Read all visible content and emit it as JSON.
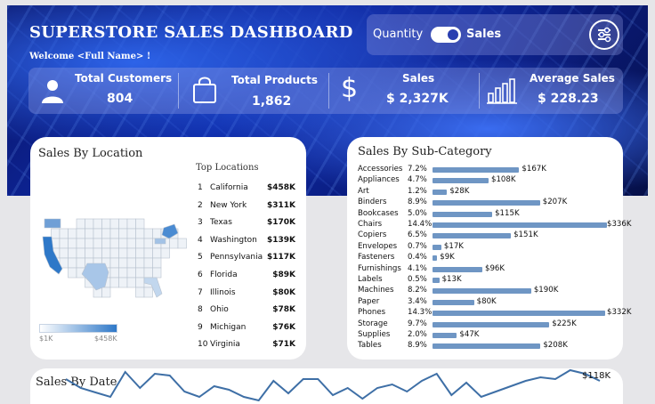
{
  "header": {
    "title": "SUPERSTORE SALES DASHBOARD",
    "welcome": "Welcome <Full Name> !"
  },
  "toggle": {
    "left_label": "Quantity",
    "right_label": "Sales",
    "state": "Sales"
  },
  "kpis": [
    {
      "label": "Total Customers",
      "value": "804",
      "icon": "person-icon"
    },
    {
      "label": "Total Products",
      "value": "1,862",
      "icon": "shopping-bag-icon"
    },
    {
      "label": "Sales",
      "value": "$ 2,327K",
      "icon": "dollar-icon"
    },
    {
      "label": "Average Sales",
      "value": "$ 228.23",
      "icon": "bar-chart-icon"
    }
  ],
  "location": {
    "title": "Sales By Location",
    "list_title": "Top Locations",
    "legend_min": "$1K",
    "legend_max": "$458K",
    "top": [
      {
        "rank": "1",
        "name": "California",
        "value": "$458K"
      },
      {
        "rank": "2",
        "name": "New York",
        "value": "$311K"
      },
      {
        "rank": "3",
        "name": "Texas",
        "value": "$170K"
      },
      {
        "rank": "4",
        "name": "Washington",
        "value": "$139K"
      },
      {
        "rank": "5",
        "name": "Pennsylvania",
        "value": "$117K"
      },
      {
        "rank": "6",
        "name": "Florida",
        "value": "$89K"
      },
      {
        "rank": "7",
        "name": "Illinois",
        "value": "$80K"
      },
      {
        "rank": "8",
        "name": "Ohio",
        "value": "$78K"
      },
      {
        "rank": "9",
        "name": "Michigan",
        "value": "$76K"
      },
      {
        "rank": "10",
        "name": "Virginia",
        "value": "$71K"
      }
    ],
    "colors": {
      "low": "#ffffff",
      "high": "#2e78c8",
      "border": "#b8c2cf"
    }
  },
  "subcategory": {
    "title": "Sales By Sub-Category",
    "bar_color": "#6f96c4",
    "rows": [
      {
        "name": "Accessories",
        "pct": "7.2%",
        "value": 167,
        "label": "$167K"
      },
      {
        "name": "Appliances",
        "pct": "4.7%",
        "value": 108,
        "label": "$108K"
      },
      {
        "name": "Art",
        "pct": "1.2%",
        "value": 28,
        "label": "$28K"
      },
      {
        "name": "Binders",
        "pct": "8.9%",
        "value": 207,
        "label": "$207K"
      },
      {
        "name": "Bookcases",
        "pct": "5.0%",
        "value": 115,
        "label": "$115K"
      },
      {
        "name": "Chairs",
        "pct": "14.4%",
        "value": 336,
        "label": "$336K"
      },
      {
        "name": "Copiers",
        "pct": "6.5%",
        "value": 151,
        "label": "$151K"
      },
      {
        "name": "Envelopes",
        "pct": "0.7%",
        "value": 17,
        "label": "$17K"
      },
      {
        "name": "Fasteners",
        "pct": "0.4%",
        "value": 9,
        "label": "$9K"
      },
      {
        "name": "Furnishings",
        "pct": "4.1%",
        "value": 96,
        "label": "$96K"
      },
      {
        "name": "Labels",
        "pct": "0.5%",
        "value": 13,
        "label": "$13K"
      },
      {
        "name": "Machines",
        "pct": "8.2%",
        "value": 190,
        "label": "$190K"
      },
      {
        "name": "Paper",
        "pct": "3.4%",
        "value": 80,
        "label": "$80K"
      },
      {
        "name": "Phones",
        "pct": "14.3%",
        "value": 332,
        "label": "$332K"
      },
      {
        "name": "Storage",
        "pct": "9.7%",
        "value": 225,
        "label": "$225K"
      },
      {
        "name": "Supplies",
        "pct": "2.0%",
        "value": 47,
        "label": "$47K"
      },
      {
        "name": "Tables",
        "pct": "8.9%",
        "value": 208,
        "label": "$208K"
      }
    ]
  },
  "date": {
    "title": "Sales By Date",
    "max_label": "$118K",
    "line_color": "#3e6fa6",
    "values": [
      30,
      20,
      15,
      10,
      38,
      20,
      36,
      34,
      16,
      10,
      22,
      18,
      10,
      6,
      28,
      14,
      30,
      30,
      12,
      20,
      8,
      20,
      24,
      16,
      28,
      36,
      12,
      26,
      10,
      16,
      22,
      28,
      32,
      30,
      40,
      36,
      28
    ]
  }
}
